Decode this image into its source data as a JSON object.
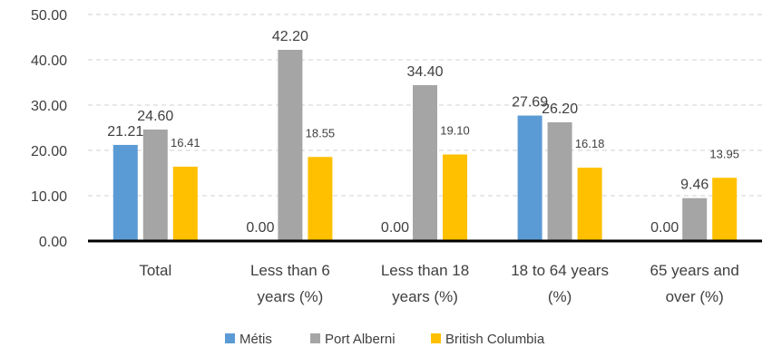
{
  "chart_data": {
    "type": "bar",
    "categories": [
      [
        "Total"
      ],
      [
        "Less than 6",
        "years (%)"
      ],
      [
        "Less than 18",
        "years (%)"
      ],
      [
        "18 to 64 years",
        "(%)"
      ],
      [
        "65 years and",
        "over (%)"
      ]
    ],
    "series": [
      {
        "name": "Métis",
        "color": "#5b9bd5",
        "values": [
          21.21,
          0.0,
          0.0,
          27.69,
          0.0
        ],
        "labels": [
          "21.21",
          "0.00",
          "0.00",
          "27.69",
          "0.00"
        ]
      },
      {
        "name": "Port Alberni",
        "color": "#a5a5a5",
        "values": [
          24.6,
          42.2,
          34.4,
          26.2,
          9.46
        ],
        "labels": [
          "24.60",
          "42.20",
          "34.40",
          "26.20",
          "9.46"
        ]
      },
      {
        "name": "British Columbia",
        "color": "#ffc000",
        "values": [
          16.41,
          18.55,
          19.1,
          16.18,
          13.95
        ],
        "labels": [
          "16.41",
          "18.55",
          "19.10",
          "16.18",
          "13.95"
        ]
      }
    ],
    "yticks": [
      "0.00",
      "10.00",
      "20.00",
      "30.00",
      "40.00",
      "50.00"
    ],
    "ylim": [
      0,
      50
    ],
    "grid": true,
    "legend_position": "bottom"
  }
}
